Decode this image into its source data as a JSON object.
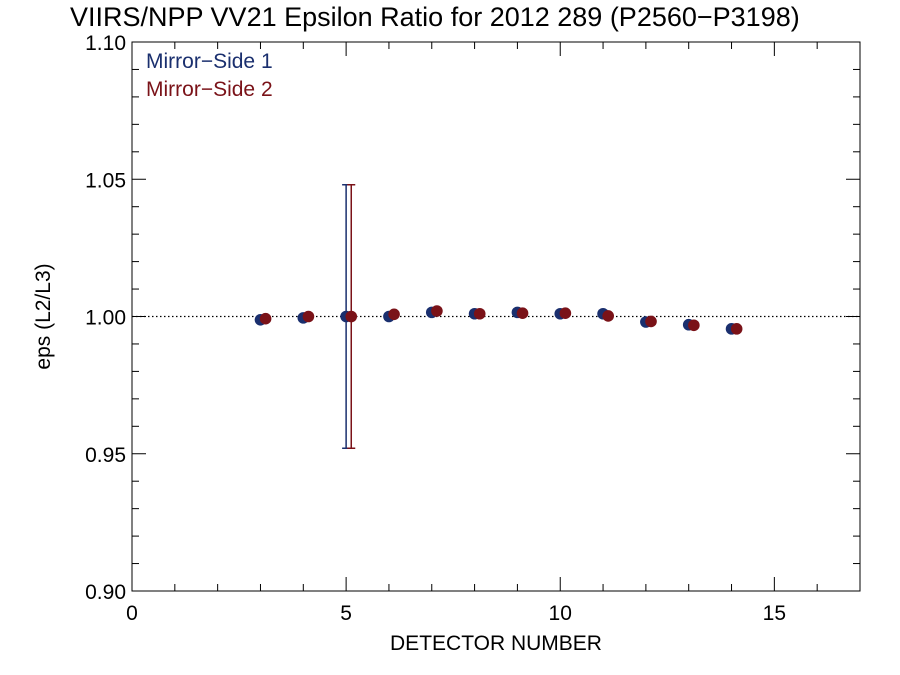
{
  "chart_data": {
    "type": "scatter",
    "title": "VIIRS/NPP VV21 Epsilon Ratio for 2012 289 (P2560−P3198)",
    "xlabel": "DETECTOR NUMBER",
    "ylabel": "eps (L2/L3)",
    "xlim": [
      0,
      17
    ],
    "ylim": [
      0.9,
      1.1
    ],
    "xticks": [
      0,
      5,
      10,
      15
    ],
    "xtick_labels": [
      "0",
      "5",
      "10",
      "15"
    ],
    "yticks": [
      0.9,
      0.95,
      1.0,
      1.05,
      1.1
    ],
    "ytick_labels": [
      "0.90",
      "0.95",
      "1.00",
      "1.05",
      "1.10"
    ],
    "x_minor_step": 1,
    "y_minor_step": 0.01,
    "reference_line": 1.0,
    "grid": false,
    "legend_placement": "top-left",
    "series": [
      {
        "name": "Mirror−Side 1",
        "color": "#1a2f6e",
        "x": [
          3,
          4,
          5,
          6,
          7,
          8,
          9,
          10,
          11,
          12,
          13,
          14
        ],
        "y": [
          0.9988,
          0.9995,
          1.0,
          1.0,
          1.0015,
          1.001,
          1.0015,
          1.001,
          1.001,
          0.998,
          0.997,
          0.9955
        ],
        "error_bars": [
          {
            "x": 5,
            "low": 0.952,
            "high": 1.048
          }
        ]
      },
      {
        "name": "Mirror−Side 2",
        "color": "#7a1218",
        "x": [
          3,
          4,
          5,
          6,
          7,
          8,
          9,
          10,
          11,
          12,
          13,
          14
        ],
        "y": [
          0.9992,
          1.0,
          1.0,
          1.0008,
          1.002,
          1.001,
          1.0012,
          1.0012,
          1.0002,
          0.9982,
          0.9968,
          0.9955
        ],
        "error_bars": [
          {
            "x": 5,
            "low": 0.952,
            "high": 1.048
          }
        ]
      }
    ]
  }
}
